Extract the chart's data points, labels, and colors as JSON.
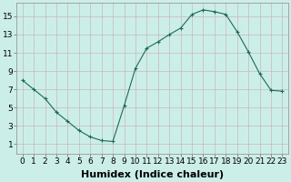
{
  "x": [
    0,
    1,
    2,
    3,
    4,
    5,
    6,
    7,
    8,
    9,
    10,
    11,
    12,
    13,
    14,
    15,
    16,
    17,
    18,
    19,
    20,
    21,
    22,
    23
  ],
  "y": [
    8.0,
    7.0,
    6.0,
    4.5,
    3.5,
    2.5,
    1.8,
    1.4,
    1.3,
    5.2,
    9.3,
    11.5,
    12.2,
    13.0,
    13.7,
    15.2,
    15.7,
    15.5,
    15.2,
    13.3,
    11.1,
    8.7,
    6.9,
    6.8
  ],
  "line_color": "#1a6b5a",
  "marker": "+",
  "marker_size": 3,
  "xlabel": "Humidex (Indice chaleur)",
  "xlim": [
    -0.5,
    23.5
  ],
  "ylim": [
    0,
    16.5
  ],
  "xticks": [
    0,
    1,
    2,
    3,
    4,
    5,
    6,
    7,
    8,
    9,
    10,
    11,
    12,
    13,
    14,
    15,
    16,
    17,
    18,
    19,
    20,
    21,
    22,
    23
  ],
  "yticks": [
    1,
    3,
    5,
    7,
    9,
    11,
    13,
    15
  ],
  "bg_color": "#cceee8",
  "grid_color": "#c8b8b8",
  "xlabel_fontsize": 8,
  "tick_fontsize": 6.5
}
